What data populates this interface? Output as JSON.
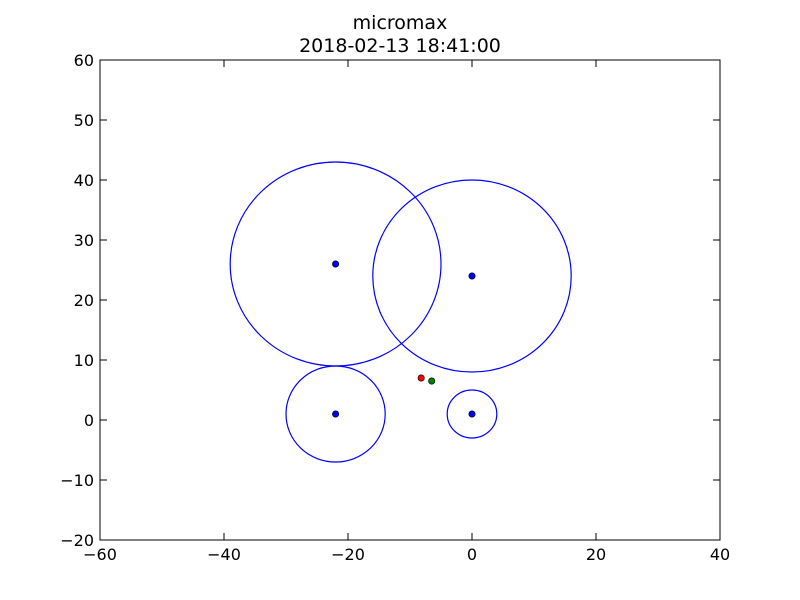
{
  "chart_data": {
    "type": "scatter",
    "title": "micromax",
    "subtitle": "2018-02-13 18:41:00",
    "xlim": [
      -60,
      40
    ],
    "ylim": [
      -20,
      60
    ],
    "xticks": [
      -60,
      -40,
      -20,
      0,
      20,
      40
    ],
    "yticks": [
      -20,
      -10,
      0,
      10,
      20,
      30,
      40,
      50,
      60
    ],
    "xtick_labels": [
      "−60",
      "−40",
      "−20",
      "0",
      "20",
      "40"
    ],
    "ytick_labels": [
      "−20",
      "−10",
      "0",
      "10",
      "20",
      "30",
      "40",
      "50",
      "60"
    ],
    "grid": false,
    "circles": [
      {
        "cx": -22,
        "cy": 26,
        "r": 17
      },
      {
        "cx": 0,
        "cy": 24,
        "r": 16
      },
      {
        "cx": -22,
        "cy": 1,
        "r": 8
      },
      {
        "cx": 0,
        "cy": 1,
        "r": 4
      }
    ],
    "points": [
      {
        "x": -22,
        "y": 26,
        "color": "#0000ff"
      },
      {
        "x": 0,
        "y": 24,
        "color": "#0000ff"
      },
      {
        "x": -22,
        "y": 1,
        "color": "#0000ff"
      },
      {
        "x": 0,
        "y": 1,
        "color": "#0000ff"
      },
      {
        "x": -8.2,
        "y": 7,
        "color": "#ff0000"
      },
      {
        "x": -6.5,
        "y": 6.5,
        "color": "#008000"
      }
    ],
    "circle_color": "#0000ff"
  }
}
